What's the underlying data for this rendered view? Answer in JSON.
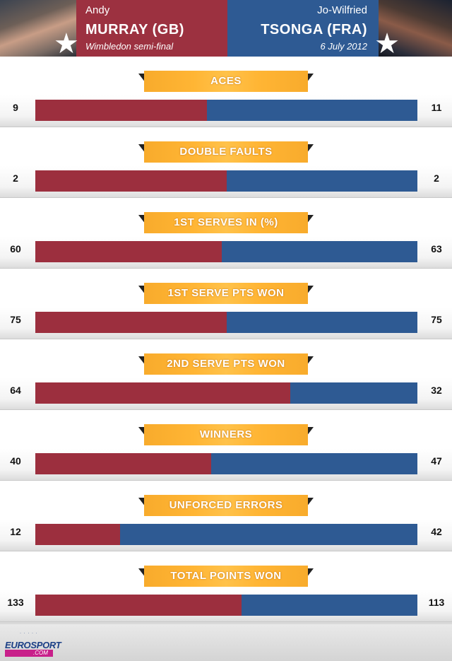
{
  "header": {
    "player1": {
      "first_name": "Andy",
      "last_name": "MURRAY (GB)"
    },
    "player2": {
      "first_name": "Jo-Wilfried",
      "last_name": "TSONGA (FRA)"
    },
    "event": "Wimbledon semi-final",
    "date": "6 July 2012",
    "colors": {
      "player1": "#9c2f3e",
      "player2": "#2e5a93",
      "label": "#ffb534"
    }
  },
  "chart_data": {
    "type": "bar",
    "orientation": "horizontal-stacked-share",
    "series": [
      {
        "name": "MURRAY (GB)",
        "values": [
          9,
          2,
          60,
          75,
          64,
          40,
          12,
          133
        ]
      },
      {
        "name": "TSONGA (FRA)",
        "values": [
          11,
          2,
          63,
          75,
          32,
          47,
          42,
          113
        ]
      }
    ],
    "categories": [
      "ACES",
      "DOUBLE FAULTS",
      "1ST SERVES IN (%)",
      "1ST SERVE PTS WON",
      "2ND SERVE PTS WON",
      "WINNERS",
      "UNFORCED ERRORS",
      "TOTAL POINTS WON"
    ],
    "stats": [
      {
        "label": "ACES",
        "left": "9",
        "right": "11"
      },
      {
        "label": "DOUBLE FAULTS",
        "left": "2",
        "right": "2"
      },
      {
        "label": "1ST SERVES IN (%)",
        "left": "60",
        "right": "63"
      },
      {
        "label": "1ST SERVE PTS WON",
        "left": "75",
        "right": "75"
      },
      {
        "label": "2ND SERVE PTS WON",
        "left": "64",
        "right": "32"
      },
      {
        "label": "WINNERS",
        "left": "40",
        "right": "47"
      },
      {
        "label": "UNFORCED ERRORS",
        "left": "12",
        "right": "42"
      },
      {
        "label": "TOTAL POINTS WON",
        "left": "133",
        "right": "113"
      }
    ]
  },
  "footer": {
    "logo_text": "EUROSPORT",
    "logo_sub": ".COM"
  }
}
